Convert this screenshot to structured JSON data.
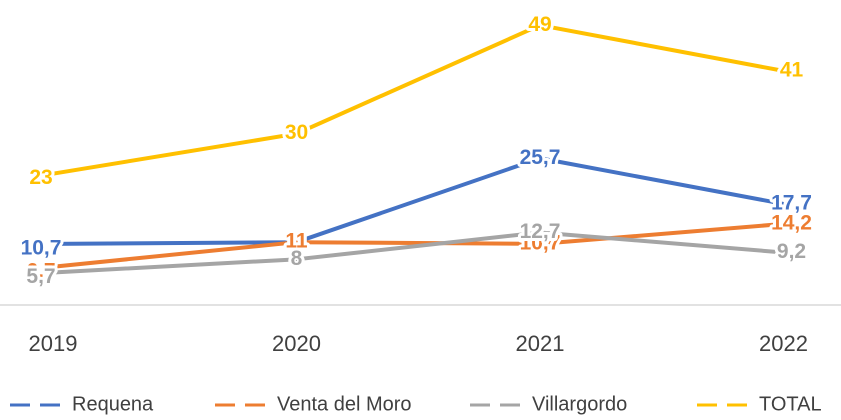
{
  "chart_data": {
    "type": "line",
    "categories": [
      "2019",
      "2020",
      "2021",
      "2022"
    ],
    "series": [
      {
        "name": "Requena",
        "color": "#4472c4",
        "values": [
          10.7,
          11,
          25.7,
          17.7
        ],
        "value_labels": [
          "10,7",
          "11",
          "25,7",
          "17,7"
        ]
      },
      {
        "name": "Venta del Moro",
        "color": "#ed7d31",
        "values": [
          6.7,
          11,
          10.7,
          14.2
        ],
        "value_labels": [
          "6,7",
          "11",
          "10,7",
          "14,2"
        ]
      },
      {
        "name": "Villargordo",
        "color": "#a5a5a5",
        "values": [
          5.7,
          8,
          12.7,
          9.2
        ],
        "value_labels": [
          "5,7",
          "8",
          "12,7",
          "9,2"
        ]
      },
      {
        "name": "TOTAL",
        "color": "#ffc000",
        "values": [
          23,
          30,
          49,
          41
        ],
        "value_labels": [
          "23",
          "30",
          "49",
          "41"
        ]
      }
    ],
    "ylim": [
      0,
      50
    ]
  }
}
